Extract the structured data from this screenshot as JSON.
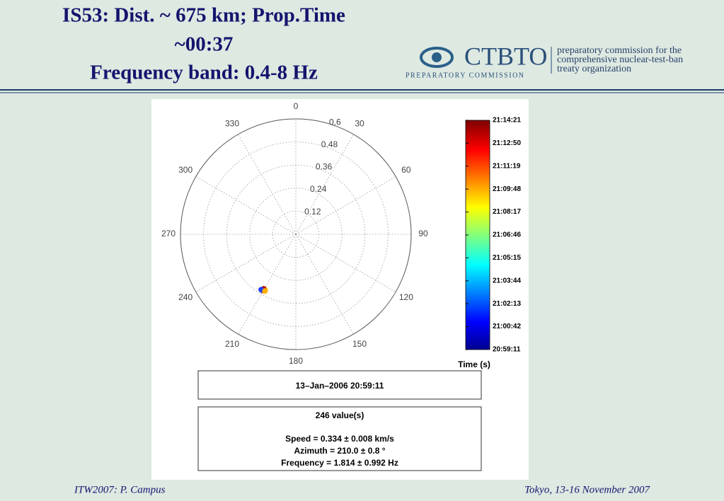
{
  "header": {
    "title_lines": [
      "IS53: Dist. ~ 675 km; Prop.Time",
      "~00:37",
      "Frequency band: 0.4-8 Hz"
    ],
    "logo": {
      "name": "CTBTO",
      "subtitle": "PREPARATORY COMMISSION",
      "tagline_lines": [
        "preparatory commission for the",
        "comprehensive nuclear-test-ban",
        "treaty organization"
      ]
    }
  },
  "chart_data": {
    "type": "polar-scatter",
    "theta_ticks": [
      0,
      30,
      60,
      90,
      120,
      150,
      180,
      210,
      240,
      270,
      300,
      330
    ],
    "rlim": [
      0,
      0.6
    ],
    "rticks": [
      0.12,
      0.24,
      0.36,
      0.48,
      0.6
    ],
    "theta": [
      209,
      210,
      211,
      210.5,
      209.5,
      210,
      212,
      208.5
    ],
    "r": [
      0.33,
      0.335,
      0.34,
      0.33,
      0.338,
      0.332,
      0.34,
      0.336
    ],
    "point_colors": [
      "#f0d000",
      "#0000b0",
      "#0030e0",
      "#d00000",
      "#ff6000",
      "#b00000",
      "#2040ff",
      "#ffb000"
    ],
    "grid": true
  },
  "colorbar": {
    "label": "Time (s)",
    "ticks": [
      "21:14:21",
      "21:12:50",
      "21:11:19",
      "21:09:48",
      "21:08:17",
      "21:06:46",
      "21:05:15",
      "21:03:44",
      "21:02:13",
      "21:00:42",
      "20:59:11"
    ]
  },
  "info": {
    "date": "13–Jan–2006 20:59:11",
    "count": "246 value(s)",
    "lines": [
      "Speed = 0.334 ± 0.008 km/s",
      "Azimuth = 210.0 ± 0.8 °",
      "Frequency = 1.814 ± 0.992 Hz"
    ]
  },
  "footer": {
    "left": "ITW2007: P. Campus",
    "right": "Tokyo, 13-16 November 2007"
  }
}
